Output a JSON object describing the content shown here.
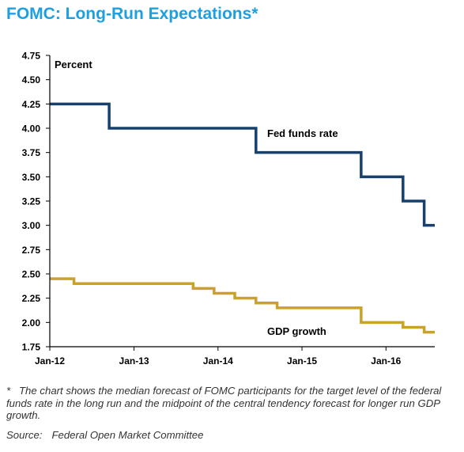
{
  "title": "FOMC: Long-Run Expectations*",
  "chart_data": {
    "type": "line",
    "step": true,
    "ylabel": "Percent",
    "ylim": [
      1.75,
      4.75
    ],
    "yticks": [
      "4.75",
      "4.50",
      "4.25",
      "4.00",
      "3.75",
      "3.50",
      "3.25",
      "3.00",
      "2.75",
      "2.50",
      "2.25",
      "2.00",
      "1.75"
    ],
    "xticks": [
      "Jan-12",
      "Jan-13",
      "Jan-14",
      "Jan-15",
      "Jan-16"
    ],
    "xlim": [
      "2012-01-01",
      "2016-07-31"
    ],
    "series": [
      {
        "name": "Fed funds rate",
        "color": "#17406d",
        "points": [
          [
            "2012-01-01",
            4.25
          ],
          [
            "2012-09-15",
            4.0
          ],
          [
            "2014-06-15",
            3.75
          ],
          [
            "2015-09-15",
            3.5
          ],
          [
            "2016-03-15",
            3.25
          ],
          [
            "2016-06-15",
            3.0
          ],
          [
            "2016-07-31",
            3.0
          ]
        ]
      },
      {
        "name": "GDP growth",
        "color": "#c9a227",
        "points": [
          [
            "2012-01-01",
            2.45
          ],
          [
            "2012-04-15",
            2.4
          ],
          [
            "2013-09-15",
            2.35
          ],
          [
            "2013-12-15",
            2.3
          ],
          [
            "2014-03-15",
            2.25
          ],
          [
            "2014-06-15",
            2.2
          ],
          [
            "2014-09-15",
            2.15
          ],
          [
            "2015-09-15",
            2.0
          ],
          [
            "2016-03-15",
            1.95
          ],
          [
            "2016-06-15",
            1.9
          ],
          [
            "2016-07-31",
            1.9
          ]
        ]
      }
    ]
  },
  "footnote": {
    "marker": "*",
    "text": "The chart shows the median forecast of FOMC participants for the target level of the federal funds rate in the long run and the midpoint of the central tendency forecast for longer run GDP growth."
  },
  "source": {
    "label": "Source:",
    "text": "Federal Open Market Committee"
  }
}
